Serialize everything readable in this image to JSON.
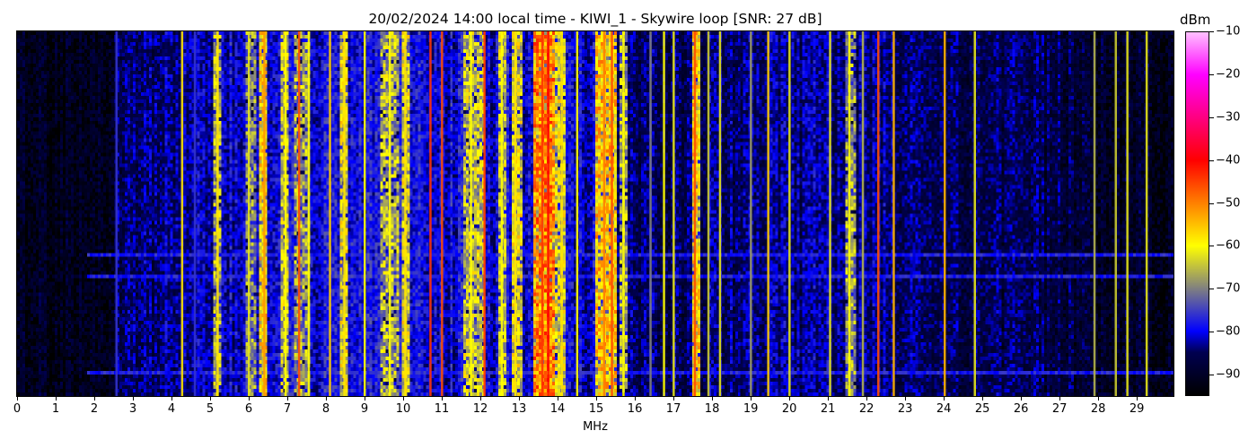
{
  "chart_data": {
    "type": "heatmap",
    "title": "20/02/2024 14:00 local time - KIWI_1 - Skywire loop [SNR: 27 dB]",
    "xlabel": "MHz",
    "xlim": [
      0,
      29.95
    ],
    "xticks": [
      "0",
      "1",
      "2",
      "3",
      "4",
      "5",
      "6",
      "7",
      "8",
      "9",
      "10",
      "11",
      "12",
      "13",
      "14",
      "15",
      "16",
      "17",
      "18",
      "19",
      "20",
      "21",
      "22",
      "23",
      "24",
      "25",
      "26",
      "27",
      "28",
      "29"
    ],
    "colorbar": {
      "label": "dBm",
      "range": [
        -95,
        -10
      ],
      "ticks": [
        "−10",
        "−20",
        "−30",
        "−40",
        "−50",
        "−60",
        "−70",
        "−80",
        "−90"
      ],
      "tick_values": [
        -10,
        -20,
        -30,
        -40,
        -50,
        -60,
        -70,
        -80,
        -90
      ],
      "colormap": [
        {
          "v": -95,
          "c": "#000000"
        },
        {
          "v": -85,
          "c": "#000050"
        },
        {
          "v": -80,
          "c": "#0000ff"
        },
        {
          "v": -70,
          "c": "#808080"
        },
        {
          "v": -60,
          "c": "#ffff00"
        },
        {
          "v": -50,
          "c": "#ff8000"
        },
        {
          "v": -40,
          "c": "#ff0000"
        },
        {
          "v": -30,
          "c": "#ff0080"
        },
        {
          "v": -20,
          "c": "#ff00ff"
        },
        {
          "v": -10,
          "c": "#ffc0ff"
        }
      ]
    },
    "noise_floor_dbm": [
      {
        "mhz": 0,
        "dbm": -92
      },
      {
        "mhz": 2.4,
        "dbm": -91
      },
      {
        "mhz": 2.6,
        "dbm": -86
      },
      {
        "mhz": 3.8,
        "dbm": -84
      },
      {
        "mhz": 4.5,
        "dbm": -82
      },
      {
        "mhz": 6,
        "dbm": -80
      },
      {
        "mhz": 14,
        "dbm": -80
      },
      {
        "mhz": 15.5,
        "dbm": -82
      },
      {
        "mhz": 16,
        "dbm": -86
      },
      {
        "mhz": 19,
        "dbm": -84
      },
      {
        "mhz": 21,
        "dbm": -83
      },
      {
        "mhz": 24,
        "dbm": -85
      },
      {
        "mhz": 27,
        "dbm": -87
      },
      {
        "mhz": 29.95,
        "dbm": -92
      }
    ],
    "broadcast_bands": [
      {
        "start": 5.1,
        "end": 5.28,
        "dbm": -66
      },
      {
        "start": 5.9,
        "end": 6.2,
        "dbm": -70
      },
      {
        "start": 6.25,
        "end": 6.5,
        "dbm": -58
      },
      {
        "start": 6.8,
        "end": 7.05,
        "dbm": -64
      },
      {
        "start": 7.2,
        "end": 7.6,
        "dbm": -68
      },
      {
        "start": 8.35,
        "end": 8.6,
        "dbm": -62
      },
      {
        "start": 9.4,
        "end": 9.9,
        "dbm": -66
      },
      {
        "start": 9.95,
        "end": 10.15,
        "dbm": -62
      },
      {
        "start": 11.55,
        "end": 12.15,
        "dbm": -64
      },
      {
        "start": 12.5,
        "end": 12.7,
        "dbm": -64
      },
      {
        "start": 12.8,
        "end": 13.1,
        "dbm": -62
      },
      {
        "start": 13.4,
        "end": 13.9,
        "dbm": -50
      },
      {
        "start": 13.9,
        "end": 14.2,
        "dbm": -62
      },
      {
        "start": 15.0,
        "end": 15.55,
        "dbm": -56
      },
      {
        "start": 15.6,
        "end": 15.8,
        "dbm": -66
      },
      {
        "start": 17.45,
        "end": 17.7,
        "dbm": -58
      },
      {
        "start": 21.45,
        "end": 21.7,
        "dbm": -68
      }
    ],
    "carriers": [
      {
        "mhz": 2.57,
        "dbm": -76
      },
      {
        "mhz": 4.27,
        "dbm": -58
      },
      {
        "mhz": 4.6,
        "dbm": -76
      },
      {
        "mhz": 5.19,
        "dbm": -58
      },
      {
        "mhz": 6.0,
        "dbm": -62
      },
      {
        "mhz": 6.4,
        "dbm": -52
      },
      {
        "mhz": 6.95,
        "dbm": -60
      },
      {
        "mhz": 7.3,
        "dbm": -46
      },
      {
        "mhz": 7.55,
        "dbm": -60
      },
      {
        "mhz": 8.1,
        "dbm": -56
      },
      {
        "mhz": 8.47,
        "dbm": -58
      },
      {
        "mhz": 9.0,
        "dbm": -60
      },
      {
        "mhz": 9.65,
        "dbm": -60
      },
      {
        "mhz": 10.05,
        "dbm": -58
      },
      {
        "mhz": 10.7,
        "dbm": -44
      },
      {
        "mhz": 11.0,
        "dbm": -46
      },
      {
        "mhz": 11.75,
        "dbm": -60
      },
      {
        "mhz": 12.1,
        "dbm": -44
      },
      {
        "mhz": 12.55,
        "dbm": -60
      },
      {
        "mhz": 12.9,
        "dbm": -58
      },
      {
        "mhz": 13.6,
        "dbm": -44
      },
      {
        "mhz": 13.75,
        "dbm": -40
      },
      {
        "mhz": 14.1,
        "dbm": -58
      },
      {
        "mhz": 14.5,
        "dbm": -60
      },
      {
        "mhz": 15.2,
        "dbm": -50
      },
      {
        "mhz": 15.4,
        "dbm": -46
      },
      {
        "mhz": 15.7,
        "dbm": -60
      },
      {
        "mhz": 16.4,
        "dbm": -70
      },
      {
        "mhz": 16.75,
        "dbm": -60
      },
      {
        "mhz": 17.0,
        "dbm": -62
      },
      {
        "mhz": 17.55,
        "dbm": -46
      },
      {
        "mhz": 17.9,
        "dbm": -64
      },
      {
        "mhz": 18.2,
        "dbm": -62
      },
      {
        "mhz": 19.0,
        "dbm": -68
      },
      {
        "mhz": 19.45,
        "dbm": -56
      },
      {
        "mhz": 20.0,
        "dbm": -62
      },
      {
        "mhz": 21.05,
        "dbm": -62
      },
      {
        "mhz": 21.55,
        "dbm": -60
      },
      {
        "mhz": 21.9,
        "dbm": -66
      },
      {
        "mhz": 22.3,
        "dbm": -46
      },
      {
        "mhz": 22.7,
        "dbm": -54
      },
      {
        "mhz": 24.02,
        "dbm": -54
      },
      {
        "mhz": 24.8,
        "dbm": -62
      },
      {
        "mhz": 27.9,
        "dbm": -66
      },
      {
        "mhz": 28.45,
        "dbm": -64
      },
      {
        "mhz": 28.75,
        "dbm": -62
      },
      {
        "mhz": 29.25,
        "dbm": -62
      }
    ]
  }
}
